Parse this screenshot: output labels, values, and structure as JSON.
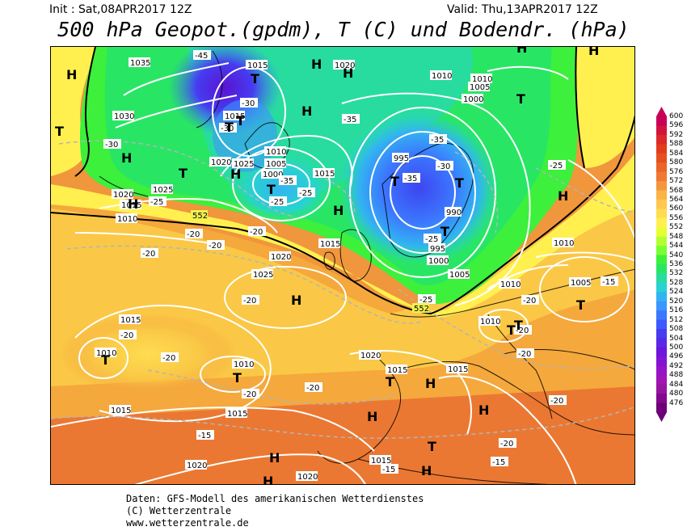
{
  "header": {
    "init": "Init : Sat,08APR2017 12Z",
    "valid": "Valid: Thu,13APR2017 12Z",
    "title": "500 hPa Geopot.(gpdm), T (C) und Bodendr. (hPa)"
  },
  "footer": {
    "line1": "Daten: GFS-Modell des amerikanischen Wetterdienstes",
    "line2": "(C) Wetterzentrale",
    "line3": "www.wetterzentrale.de"
  },
  "legend": {
    "levels": [
      "600",
      "596",
      "592",
      "588",
      "584",
      "580",
      "576",
      "572",
      "568",
      "564",
      "560",
      "556",
      "552",
      "548",
      "544",
      "540",
      "536",
      "532",
      "528",
      "524",
      "520",
      "516",
      "512",
      "508",
      "504",
      "500",
      "496",
      "492",
      "488",
      "484",
      "480",
      "476"
    ],
    "colors": [
      "#c8005a",
      "#d2143c",
      "#dc2828",
      "#e13c1e",
      "#e6501e",
      "#eb6428",
      "#f07832",
      "#f5963c",
      "#fab446",
      "#ffc850",
      "#ffdc50",
      "#fff050",
      "#e6ff32",
      "#b4ff32",
      "#78ff32",
      "#3cf03c",
      "#28e664",
      "#28dca0",
      "#28d2d2",
      "#32b4f0",
      "#3c96ff",
      "#3c78ff",
      "#3c5aff",
      "#463cf0",
      "#5a28e6",
      "#6e14dc",
      "#8214d2",
      "#9614c8",
      "#a014b4",
      "#9614a0",
      "#820a8c",
      "#6e0078"
    ]
  },
  "map": {
    "pressure_labels": [
      "1035",
      "1015",
      "1020",
      "1030",
      "1015",
      "1010",
      "1005",
      "1000",
      "1020",
      "1025",
      "1025",
      "1020",
      "1015",
      "1010",
      "1015",
      "995",
      "990",
      "995",
      "1000",
      "1005",
      "1010",
      "1005",
      "1000",
      "1010",
      "1015",
      "1020",
      "1025",
      "1015",
      "1010",
      "1010",
      "1020",
      "1015",
      "1015",
      "1015",
      "1015",
      "1020",
      "1020",
      "1015",
      "1010",
      "1010",
      "1005",
      "1010",
      "1005",
      "1020"
    ],
    "temp_labels": [
      "-45",
      "-30",
      "-35",
      "-30",
      "-30",
      "-35",
      "-35",
      "-25",
      "-20",
      "-30",
      "-25",
      "-35",
      "-35",
      "-30",
      "-25",
      "-25",
      "-20",
      "-20",
      "-20",
      "-20",
      "-20",
      "-20",
      "-20",
      "-20",
      "-25",
      "-20",
      "-20",
      "-20",
      "-20",
      "-15",
      "-20",
      "-15",
      "-15",
      "-15",
      "-25",
      "-15",
      "-20"
    ],
    "gpdm_labels": [
      "552",
      "552"
    ],
    "centers_H": [
      "H",
      "H",
      "H",
      "H",
      "H",
      "H",
      "H",
      "H",
      "H",
      "H",
      "H",
      "H",
      "H",
      "H",
      "H",
      "H",
      "H",
      "H"
    ],
    "centers_T": [
      "T",
      "T",
      "T",
      "T",
      "T",
      "T",
      "T",
      "T",
      "T",
      "T",
      "T",
      "T",
      "T",
      "T",
      "T",
      "T",
      "T"
    ]
  }
}
